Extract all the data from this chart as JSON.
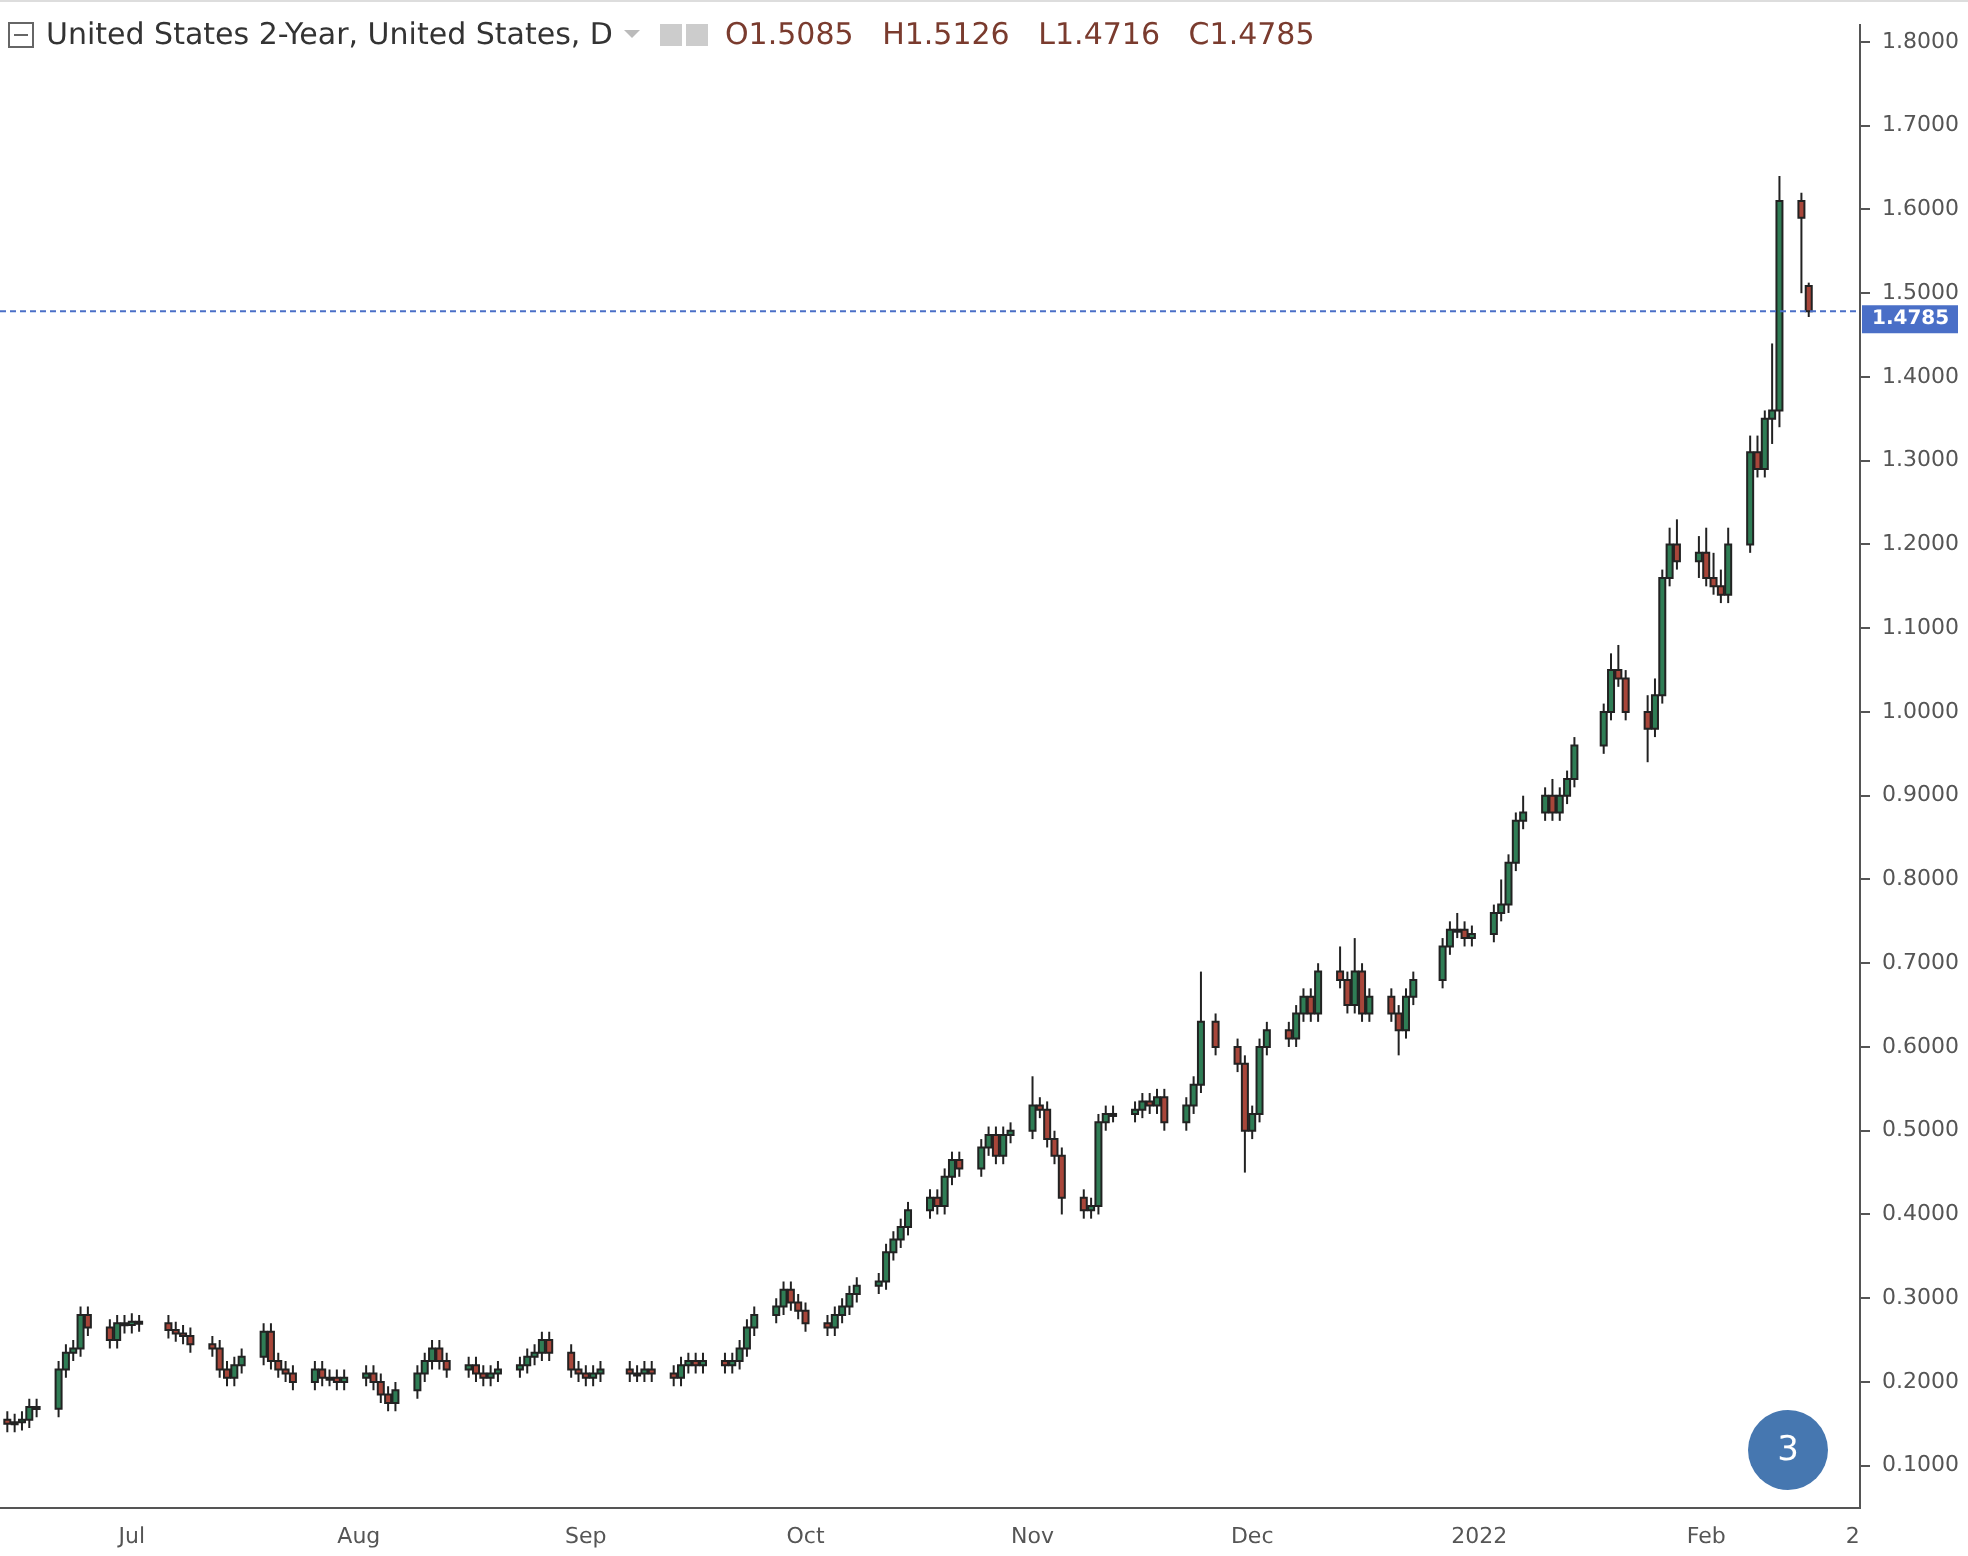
{
  "chart_data": {
    "type": "candlestick",
    "title": "United States 2-Year, United States, D",
    "subtitle": "O1.5085   H1.5126   L1.4716   C1.4785",
    "annotations": [
      "3"
    ],
    "x": [
      "2021-06-14",
      "2021-06-15",
      "2021-06-16",
      "2021-06-17",
      "2021-06-18",
      "2021-06-21",
      "2021-06-22",
      "2021-06-23",
      "2021-06-24",
      "2021-06-25",
      "2021-06-28",
      "2021-06-29",
      "2021-06-30",
      "2021-07-01",
      "2021-07-02",
      "2021-07-06",
      "2021-07-07",
      "2021-07-08",
      "2021-07-09",
      "2021-07-12",
      "2021-07-13",
      "2021-07-14",
      "2021-07-15",
      "2021-07-16",
      "2021-07-19",
      "2021-07-20",
      "2021-07-21",
      "2021-07-22",
      "2021-07-23",
      "2021-07-26",
      "2021-07-27",
      "2021-07-28",
      "2021-07-29",
      "2021-07-30",
      "2021-08-02",
      "2021-08-03",
      "2021-08-04",
      "2021-08-05",
      "2021-08-06",
      "2021-08-09",
      "2021-08-10",
      "2021-08-11",
      "2021-08-12",
      "2021-08-13",
      "2021-08-16",
      "2021-08-17",
      "2021-08-18",
      "2021-08-19",
      "2021-08-20",
      "2021-08-23",
      "2021-08-24",
      "2021-08-25",
      "2021-08-26",
      "2021-08-27",
      "2021-08-30",
      "2021-08-31",
      "2021-09-01",
      "2021-09-02",
      "2021-09-03",
      "2021-09-07",
      "2021-09-08",
      "2021-09-09",
      "2021-09-10",
      "2021-09-13",
      "2021-09-14",
      "2021-09-15",
      "2021-09-16",
      "2021-09-17",
      "2021-09-20",
      "2021-09-21",
      "2021-09-22",
      "2021-09-23",
      "2021-09-24",
      "2021-09-27",
      "2021-09-28",
      "2021-09-29",
      "2021-09-30",
      "2021-10-01",
      "2021-10-04",
      "2021-10-05",
      "2021-10-06",
      "2021-10-07",
      "2021-10-08",
      "2021-10-11",
      "2021-10-12",
      "2021-10-13",
      "2021-10-14",
      "2021-10-15",
      "2021-10-18",
      "2021-10-19",
      "2021-10-20",
      "2021-10-21",
      "2021-10-22",
      "2021-10-25",
      "2021-10-26",
      "2021-10-27",
      "2021-10-28",
      "2021-10-29",
      "2021-11-01",
      "2021-11-02",
      "2021-11-03",
      "2021-11-04",
      "2021-11-05",
      "2021-11-08",
      "2021-11-09",
      "2021-11-10",
      "2021-11-11",
      "2021-11-12",
      "2021-11-15",
      "2021-11-16",
      "2021-11-17",
      "2021-11-18",
      "2021-11-19",
      "2021-11-22",
      "2021-11-23",
      "2021-11-24",
      "2021-11-26",
      "2021-11-29",
      "2021-11-30",
      "2021-12-01",
      "2021-12-02",
      "2021-12-03",
      "2021-12-06",
      "2021-12-07",
      "2021-12-08",
      "2021-12-09",
      "2021-12-10",
      "2021-12-13",
      "2021-12-14",
      "2021-12-15",
      "2021-12-16",
      "2021-12-17",
      "2021-12-20",
      "2021-12-21",
      "2021-12-22",
      "2021-12-23",
      "2021-12-27",
      "2021-12-28",
      "2021-12-29",
      "2021-12-30",
      "2021-12-31",
      "2022-01-03",
      "2022-01-04",
      "2022-01-05",
      "2022-01-06",
      "2022-01-07",
      "2022-01-10",
      "2022-01-11",
      "2022-01-12",
      "2022-01-13",
      "2022-01-14",
      "2022-01-18",
      "2022-01-19",
      "2022-01-20",
      "2022-01-21",
      "2022-01-24",
      "2022-01-25",
      "2022-01-26",
      "2022-01-27",
      "2022-01-28",
      "2022-01-31",
      "2022-02-01",
      "2022-02-02",
      "2022-02-03",
      "2022-02-04",
      "2022-02-07",
      "2022-02-08",
      "2022-02-09",
      "2022-02-10",
      "2022-02-11",
      "2022-02-14",
      "2022-02-15"
    ],
    "ohlc": [
      [
        0.155,
        0.165,
        0.14,
        0.15
      ],
      [
        0.15,
        0.162,
        0.14,
        0.152
      ],
      [
        0.152,
        0.165,
        0.142,
        0.155
      ],
      [
        0.155,
        0.18,
        0.145,
        0.17
      ],
      [
        0.17,
        0.18,
        0.158,
        0.168
      ],
      [
        0.168,
        0.225,
        0.158,
        0.215
      ],
      [
        0.215,
        0.245,
        0.205,
        0.235
      ],
      [
        0.235,
        0.25,
        0.225,
        0.24
      ],
      [
        0.24,
        0.29,
        0.23,
        0.28
      ],
      [
        0.28,
        0.29,
        0.255,
        0.265
      ],
      [
        0.265,
        0.275,
        0.24,
        0.25
      ],
      [
        0.25,
        0.28,
        0.24,
        0.27
      ],
      [
        0.27,
        0.28,
        0.258,
        0.268
      ],
      [
        0.268,
        0.282,
        0.258,
        0.272
      ],
      [
        0.272,
        0.28,
        0.26,
        0.27
      ],
      [
        0.27,
        0.28,
        0.252,
        0.262
      ],
      [
        0.262,
        0.272,
        0.248,
        0.258
      ],
      [
        0.258,
        0.268,
        0.245,
        0.255
      ],
      [
        0.255,
        0.265,
        0.235,
        0.245
      ],
      [
        0.245,
        0.255,
        0.23,
        0.24
      ],
      [
        0.24,
        0.25,
        0.205,
        0.215
      ],
      [
        0.215,
        0.225,
        0.195,
        0.205
      ],
      [
        0.205,
        0.23,
        0.195,
        0.22
      ],
      [
        0.22,
        0.24,
        0.21,
        0.23
      ],
      [
        0.23,
        0.27,
        0.22,
        0.26
      ],
      [
        0.26,
        0.27,
        0.215,
        0.225
      ],
      [
        0.225,
        0.235,
        0.205,
        0.215
      ],
      [
        0.215,
        0.225,
        0.2,
        0.21
      ],
      [
        0.21,
        0.22,
        0.19,
        0.2
      ],
      [
        0.2,
        0.225,
        0.19,
        0.215
      ],
      [
        0.215,
        0.225,
        0.195,
        0.205
      ],
      [
        0.205,
        0.215,
        0.195,
        0.205
      ],
      [
        0.205,
        0.215,
        0.19,
        0.2
      ],
      [
        0.2,
        0.215,
        0.19,
        0.205
      ],
      [
        0.205,
        0.22,
        0.195,
        0.21
      ],
      [
        0.21,
        0.22,
        0.19,
        0.2
      ],
      [
        0.2,
        0.21,
        0.175,
        0.185
      ],
      [
        0.185,
        0.195,
        0.165,
        0.175
      ],
      [
        0.175,
        0.2,
        0.165,
        0.19
      ],
      [
        0.19,
        0.22,
        0.18,
        0.21
      ],
      [
        0.21,
        0.235,
        0.2,
        0.225
      ],
      [
        0.225,
        0.25,
        0.215,
        0.24
      ],
      [
        0.24,
        0.25,
        0.215,
        0.225
      ],
      [
        0.225,
        0.235,
        0.205,
        0.215
      ],
      [
        0.215,
        0.23,
        0.205,
        0.22
      ],
      [
        0.22,
        0.23,
        0.2,
        0.21
      ],
      [
        0.21,
        0.22,
        0.195,
        0.205
      ],
      [
        0.205,
        0.22,
        0.195,
        0.21
      ],
      [
        0.21,
        0.225,
        0.2,
        0.215
      ],
      [
        0.215,
        0.23,
        0.205,
        0.22
      ],
      [
        0.22,
        0.24,
        0.21,
        0.23
      ],
      [
        0.23,
        0.245,
        0.22,
        0.235
      ],
      [
        0.235,
        0.26,
        0.225,
        0.25
      ],
      [
        0.25,
        0.26,
        0.225,
        0.235
      ],
      [
        0.235,
        0.245,
        0.205,
        0.215
      ],
      [
        0.215,
        0.225,
        0.2,
        0.21
      ],
      [
        0.21,
        0.22,
        0.195,
        0.205
      ],
      [
        0.205,
        0.22,
        0.195,
        0.21
      ],
      [
        0.21,
        0.225,
        0.2,
        0.215
      ],
      [
        0.215,
        0.225,
        0.2,
        0.21
      ],
      [
        0.21,
        0.22,
        0.2,
        0.21
      ],
      [
        0.21,
        0.225,
        0.2,
        0.215
      ],
      [
        0.215,
        0.225,
        0.2,
        0.21
      ],
      [
        0.21,
        0.22,
        0.195,
        0.205
      ],
      [
        0.205,
        0.23,
        0.195,
        0.22
      ],
      [
        0.22,
        0.235,
        0.21,
        0.225
      ],
      [
        0.225,
        0.235,
        0.21,
        0.22
      ],
      [
        0.22,
        0.235,
        0.21,
        0.225
      ],
      [
        0.225,
        0.235,
        0.21,
        0.22
      ],
      [
        0.22,
        0.235,
        0.21,
        0.225
      ],
      [
        0.225,
        0.25,
        0.215,
        0.24
      ],
      [
        0.24,
        0.275,
        0.23,
        0.265
      ],
      [
        0.265,
        0.29,
        0.255,
        0.28
      ],
      [
        0.28,
        0.3,
        0.27,
        0.29
      ],
      [
        0.29,
        0.32,
        0.28,
        0.31
      ],
      [
        0.31,
        0.32,
        0.285,
        0.295
      ],
      [
        0.295,
        0.305,
        0.275,
        0.285
      ],
      [
        0.285,
        0.295,
        0.26,
        0.27
      ],
      [
        0.27,
        0.28,
        0.255,
        0.265
      ],
      [
        0.265,
        0.29,
        0.255,
        0.28
      ],
      [
        0.28,
        0.3,
        0.27,
        0.29
      ],
      [
        0.29,
        0.315,
        0.28,
        0.305
      ],
      [
        0.305,
        0.325,
        0.295,
        0.315
      ],
      [
        0.315,
        0.33,
        0.305,
        0.32
      ],
      [
        0.32,
        0.365,
        0.31,
        0.355
      ],
      [
        0.355,
        0.38,
        0.345,
        0.37
      ],
      [
        0.37,
        0.395,
        0.36,
        0.385
      ],
      [
        0.385,
        0.415,
        0.375,
        0.405
      ],
      [
        0.405,
        0.43,
        0.395,
        0.42
      ],
      [
        0.42,
        0.43,
        0.4,
        0.41
      ],
      [
        0.41,
        0.455,
        0.4,
        0.445
      ],
      [
        0.445,
        0.475,
        0.435,
        0.465
      ],
      [
        0.465,
        0.475,
        0.445,
        0.455
      ],
      [
        0.455,
        0.49,
        0.445,
        0.48
      ],
      [
        0.48,
        0.505,
        0.47,
        0.495
      ],
      [
        0.495,
        0.505,
        0.46,
        0.47
      ],
      [
        0.47,
        0.505,
        0.46,
        0.495
      ],
      [
        0.495,
        0.51,
        0.485,
        0.5
      ],
      [
        0.5,
        0.565,
        0.49,
        0.53
      ],
      [
        0.53,
        0.54,
        0.515,
        0.525
      ],
      [
        0.525,
        0.535,
        0.48,
        0.49
      ],
      [
        0.49,
        0.5,
        0.46,
        0.47
      ],
      [
        0.47,
        0.48,
        0.4,
        0.42
      ],
      [
        0.42,
        0.43,
        0.395,
        0.405
      ],
      [
        0.405,
        0.42,
        0.395,
        0.41
      ],
      [
        0.41,
        0.52,
        0.4,
        0.51
      ],
      [
        0.51,
        0.53,
        0.5,
        0.52
      ],
      [
        0.52,
        0.53,
        0.51,
        0.52
      ],
      [
        0.52,
        0.535,
        0.51,
        0.525
      ],
      [
        0.525,
        0.545,
        0.515,
        0.535
      ],
      [
        0.535,
        0.545,
        0.52,
        0.53
      ],
      [
        0.53,
        0.55,
        0.52,
        0.54
      ],
      [
        0.54,
        0.55,
        0.5,
        0.51
      ],
      [
        0.51,
        0.54,
        0.5,
        0.53
      ],
      [
        0.53,
        0.565,
        0.52,
        0.555
      ],
      [
        0.555,
        0.69,
        0.545,
        0.63
      ],
      [
        0.63,
        0.64,
        0.59,
        0.6
      ],
      [
        0.6,
        0.61,
        0.57,
        0.58
      ],
      [
        0.58,
        0.59,
        0.45,
        0.5
      ],
      [
        0.5,
        0.53,
        0.49,
        0.52
      ],
      [
        0.52,
        0.61,
        0.51,
        0.6
      ],
      [
        0.6,
        0.63,
        0.59,
        0.62
      ],
      [
        0.62,
        0.63,
        0.6,
        0.61
      ],
      [
        0.61,
        0.65,
        0.6,
        0.64
      ],
      [
        0.64,
        0.67,
        0.63,
        0.66
      ],
      [
        0.66,
        0.67,
        0.63,
        0.64
      ],
      [
        0.64,
        0.7,
        0.63,
        0.69
      ],
      [
        0.69,
        0.72,
        0.67,
        0.68
      ],
      [
        0.68,
        0.69,
        0.64,
        0.65
      ],
      [
        0.65,
        0.73,
        0.64,
        0.69
      ],
      [
        0.69,
        0.7,
        0.63,
        0.64
      ],
      [
        0.64,
        0.67,
        0.63,
        0.66
      ],
      [
        0.66,
        0.67,
        0.63,
        0.64
      ],
      [
        0.64,
        0.65,
        0.59,
        0.62
      ],
      [
        0.62,
        0.67,
        0.61,
        0.66
      ],
      [
        0.66,
        0.69,
        0.65,
        0.68
      ],
      [
        0.68,
        0.73,
        0.67,
        0.72
      ],
      [
        0.72,
        0.75,
        0.71,
        0.74
      ],
      [
        0.74,
        0.76,
        0.73,
        0.74
      ],
      [
        0.74,
        0.75,
        0.72,
        0.73
      ],
      [
        0.73,
        0.745,
        0.72,
        0.735
      ],
      [
        0.735,
        0.77,
        0.725,
        0.76
      ],
      [
        0.76,
        0.8,
        0.75,
        0.77
      ],
      [
        0.77,
        0.83,
        0.76,
        0.82
      ],
      [
        0.82,
        0.88,
        0.81,
        0.87
      ],
      [
        0.87,
        0.9,
        0.86,
        0.88
      ],
      [
        0.88,
        0.91,
        0.87,
        0.9
      ],
      [
        0.9,
        0.92,
        0.87,
        0.88
      ],
      [
        0.88,
        0.91,
        0.87,
        0.9
      ],
      [
        0.9,
        0.93,
        0.89,
        0.92
      ],
      [
        0.92,
        0.97,
        0.91,
        0.96
      ],
      [
        0.96,
        1.01,
        0.95,
        1.0
      ],
      [
        1.0,
        1.07,
        0.99,
        1.05
      ],
      [
        1.05,
        1.08,
        1.03,
        1.04
      ],
      [
        1.04,
        1.05,
        0.99,
        1.0
      ],
      [
        1.0,
        1.02,
        0.94,
        0.98
      ],
      [
        0.98,
        1.04,
        0.97,
        1.02
      ],
      [
        1.02,
        1.17,
        1.01,
        1.16
      ],
      [
        1.16,
        1.22,
        1.15,
        1.2
      ],
      [
        1.2,
        1.23,
        1.17,
        1.18
      ],
      [
        1.18,
        1.21,
        1.16,
        1.19
      ],
      [
        1.19,
        1.22,
        1.15,
        1.16
      ],
      [
        1.16,
        1.19,
        1.14,
        1.15
      ],
      [
        1.15,
        1.17,
        1.13,
        1.14
      ],
      [
        1.14,
        1.22,
        1.13,
        1.2
      ],
      [
        1.2,
        1.33,
        1.19,
        1.31
      ],
      [
        1.31,
        1.33,
        1.28,
        1.29
      ],
      [
        1.29,
        1.36,
        1.28,
        1.35
      ],
      [
        1.35,
        1.44,
        1.32,
        1.36
      ],
      [
        1.36,
        1.64,
        1.34,
        1.61
      ],
      [
        1.61,
        1.62,
        1.5,
        1.59
      ],
      [
        1.5085,
        1.5126,
        1.4716,
        1.4785
      ]
    ],
    "xlim": [
      "2021-06-13",
      "2022-02-22"
    ],
    "xticks": [
      {
        "value": "2021-07-01",
        "label": "Jul"
      },
      {
        "value": "2021-08-01",
        "label": "Aug"
      },
      {
        "value": "2021-09-01",
        "label": "Sep"
      },
      {
        "value": "2021-10-01",
        "label": "Oct"
      },
      {
        "value": "2021-11-01",
        "label": "Nov"
      },
      {
        "value": "2021-12-01",
        "label": "Dec"
      },
      {
        "value": "2022-01-01",
        "label": "2022"
      },
      {
        "value": "2022-02-01",
        "label": "Feb"
      },
      {
        "value": "2022-02-21",
        "label": "2"
      }
    ],
    "ylim": [
      0.05,
      1.82
    ],
    "yticks": [
      {
        "value": 0.1,
        "label": "0.1000"
      },
      {
        "value": 0.2,
        "label": "0.2000"
      },
      {
        "value": 0.3,
        "label": "0.3000"
      },
      {
        "value": 0.4,
        "label": "0.4000"
      },
      {
        "value": 0.5,
        "label": "0.5000"
      },
      {
        "value": 0.6,
        "label": "0.6000"
      },
      {
        "value": 0.7,
        "label": "0.7000"
      },
      {
        "value": 0.8,
        "label": "0.8000"
      },
      {
        "value": 0.9,
        "label": "0.9000"
      },
      {
        "value": 1.0,
        "label": "1.0000"
      },
      {
        "value": 1.1,
        "label": "1.1000"
      },
      {
        "value": 1.2,
        "label": "1.2000"
      },
      {
        "value": 1.3,
        "label": "1.3000"
      },
      {
        "value": 1.4,
        "label": "1.4000"
      },
      {
        "value": 1.5,
        "label": "1.5000"
      },
      {
        "value": 1.6,
        "label": "1.6000"
      },
      {
        "value": 1.7,
        "label": "1.7000"
      },
      {
        "value": 1.8,
        "label": "1.8000"
      }
    ],
    "ref_lines": [
      {
        "axis": "y",
        "value": 1.4785,
        "label": "1.4785",
        "color": "#4a6fc7",
        "line_style": "dashed"
      }
    ],
    "grid": false,
    "legend": false
  }
}
